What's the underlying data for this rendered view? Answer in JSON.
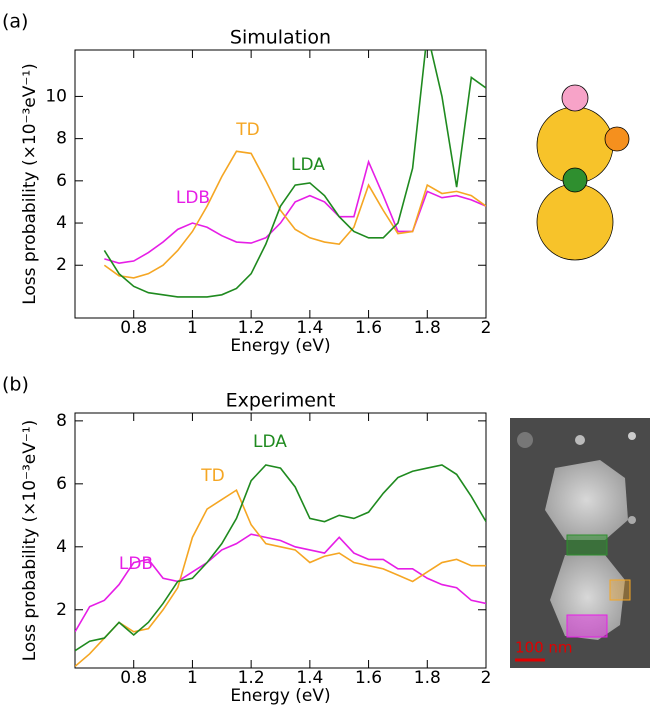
{
  "chart_data": [
    {
      "type": "line",
      "panel_label": "(a)",
      "title": "Simulation",
      "x_label": "Energy (eV)",
      "y_label": "Loss probability (×10⁻³eV⁻¹)",
      "x": [
        0.7,
        0.75,
        0.8,
        0.85,
        0.9,
        0.95,
        1.0,
        1.05,
        1.1,
        1.15,
        1.2,
        1.25,
        1.3,
        1.35,
        1.4,
        1.45,
        1.5,
        1.55,
        1.6,
        1.65,
        1.7,
        1.75,
        1.8,
        1.85,
        1.9,
        1.95,
        2.0
      ],
      "xlim": [
        0.6,
        2.0
      ],
      "ylim": [
        -0.5,
        12.2
      ],
      "xticks": [
        0.8,
        1,
        1.2,
        1.4,
        1.6,
        1.8,
        2
      ],
      "yticks": [
        2,
        4,
        6,
        8,
        10
      ],
      "series": [
        {
          "name": "LDB",
          "color": "#e61ee6",
          "values": [
            2.3,
            2.1,
            2.2,
            2.6,
            3.1,
            3.7,
            4.0,
            3.8,
            3.4,
            3.1,
            3.05,
            3.3,
            4.0,
            5.0,
            5.3,
            5.0,
            4.3,
            4.3,
            6.9,
            5.3,
            3.6,
            3.6,
            5.5,
            5.2,
            5.3,
            5.1,
            4.8
          ]
        },
        {
          "name": "TD",
          "color": "#f5a623",
          "values": [
            2.0,
            1.5,
            1.4,
            1.6,
            2.0,
            2.7,
            3.6,
            4.8,
            6.2,
            7.4,
            7.3,
            6.0,
            4.6,
            3.7,
            3.3,
            3.1,
            3.0,
            3.8,
            5.8,
            4.6,
            3.5,
            3.6,
            5.8,
            5.4,
            5.5,
            5.3,
            4.8
          ]
        },
        {
          "name": "LDA",
          "color": "#1f8a1f",
          "values": [
            2.7,
            1.6,
            1.0,
            0.7,
            0.6,
            0.5,
            0.5,
            0.5,
            0.6,
            0.9,
            1.6,
            3.0,
            4.8,
            5.8,
            5.9,
            5.3,
            4.3,
            3.6,
            3.3,
            3.3,
            4.0,
            6.6,
            13.0,
            10.0,
            5.7,
            10.9,
            10.4
          ]
        }
      ]
    },
    {
      "type": "line",
      "panel_label": "(b)",
      "title": "Experiment",
      "x_label": "Energy (eV)",
      "y_label": "Loss probability (×10⁻³eV⁻¹)",
      "x": [
        0.6,
        0.65,
        0.7,
        0.75,
        0.8,
        0.85,
        0.9,
        0.95,
        1.0,
        1.05,
        1.1,
        1.15,
        1.2,
        1.25,
        1.3,
        1.35,
        1.4,
        1.45,
        1.5,
        1.55,
        1.6,
        1.65,
        1.7,
        1.75,
        1.8,
        1.85,
        1.9,
        1.95,
        2.0
      ],
      "xlim": [
        0.6,
        2.0
      ],
      "ylim": [
        0.15,
        8.25
      ],
      "xticks": [
        0.8,
        1,
        1.2,
        1.4,
        1.6,
        1.8,
        2
      ],
      "yticks": [
        2,
        4,
        6,
        8
      ],
      "series": [
        {
          "name": "LDB",
          "color": "#e61ee6",
          "values": [
            1.3,
            2.1,
            2.3,
            2.8,
            3.5,
            3.6,
            3.0,
            2.9,
            3.2,
            3.5,
            3.9,
            4.1,
            4.4,
            4.3,
            4.2,
            4.0,
            3.9,
            3.8,
            4.3,
            3.8,
            3.6,
            3.6,
            3.3,
            3.3,
            3.0,
            2.8,
            2.7,
            2.3,
            2.2
          ]
        },
        {
          "name": "TD",
          "color": "#f5a623",
          "values": [
            0.2,
            0.6,
            1.1,
            1.6,
            1.3,
            1.4,
            2.0,
            2.7,
            4.3,
            5.2,
            5.5,
            5.8,
            4.7,
            4.1,
            4.0,
            3.9,
            3.5,
            3.7,
            3.8,
            3.5,
            3.4,
            3.3,
            3.1,
            2.9,
            3.2,
            3.5,
            3.6,
            3.4,
            3.4
          ]
        },
        {
          "name": "LDA",
          "color": "#1f8a1f",
          "values": [
            0.7,
            1.0,
            1.1,
            1.6,
            1.2,
            1.6,
            2.2,
            2.9,
            3.0,
            3.5,
            4.1,
            4.9,
            6.1,
            6.6,
            6.5,
            5.9,
            4.9,
            4.8,
            5.0,
            4.9,
            5.1,
            5.7,
            6.2,
            6.4,
            6.5,
            6.6,
            6.3,
            5.6,
            4.8
          ]
        }
      ]
    }
  ],
  "image": {
    "scale_bar_label": "100 nm"
  }
}
